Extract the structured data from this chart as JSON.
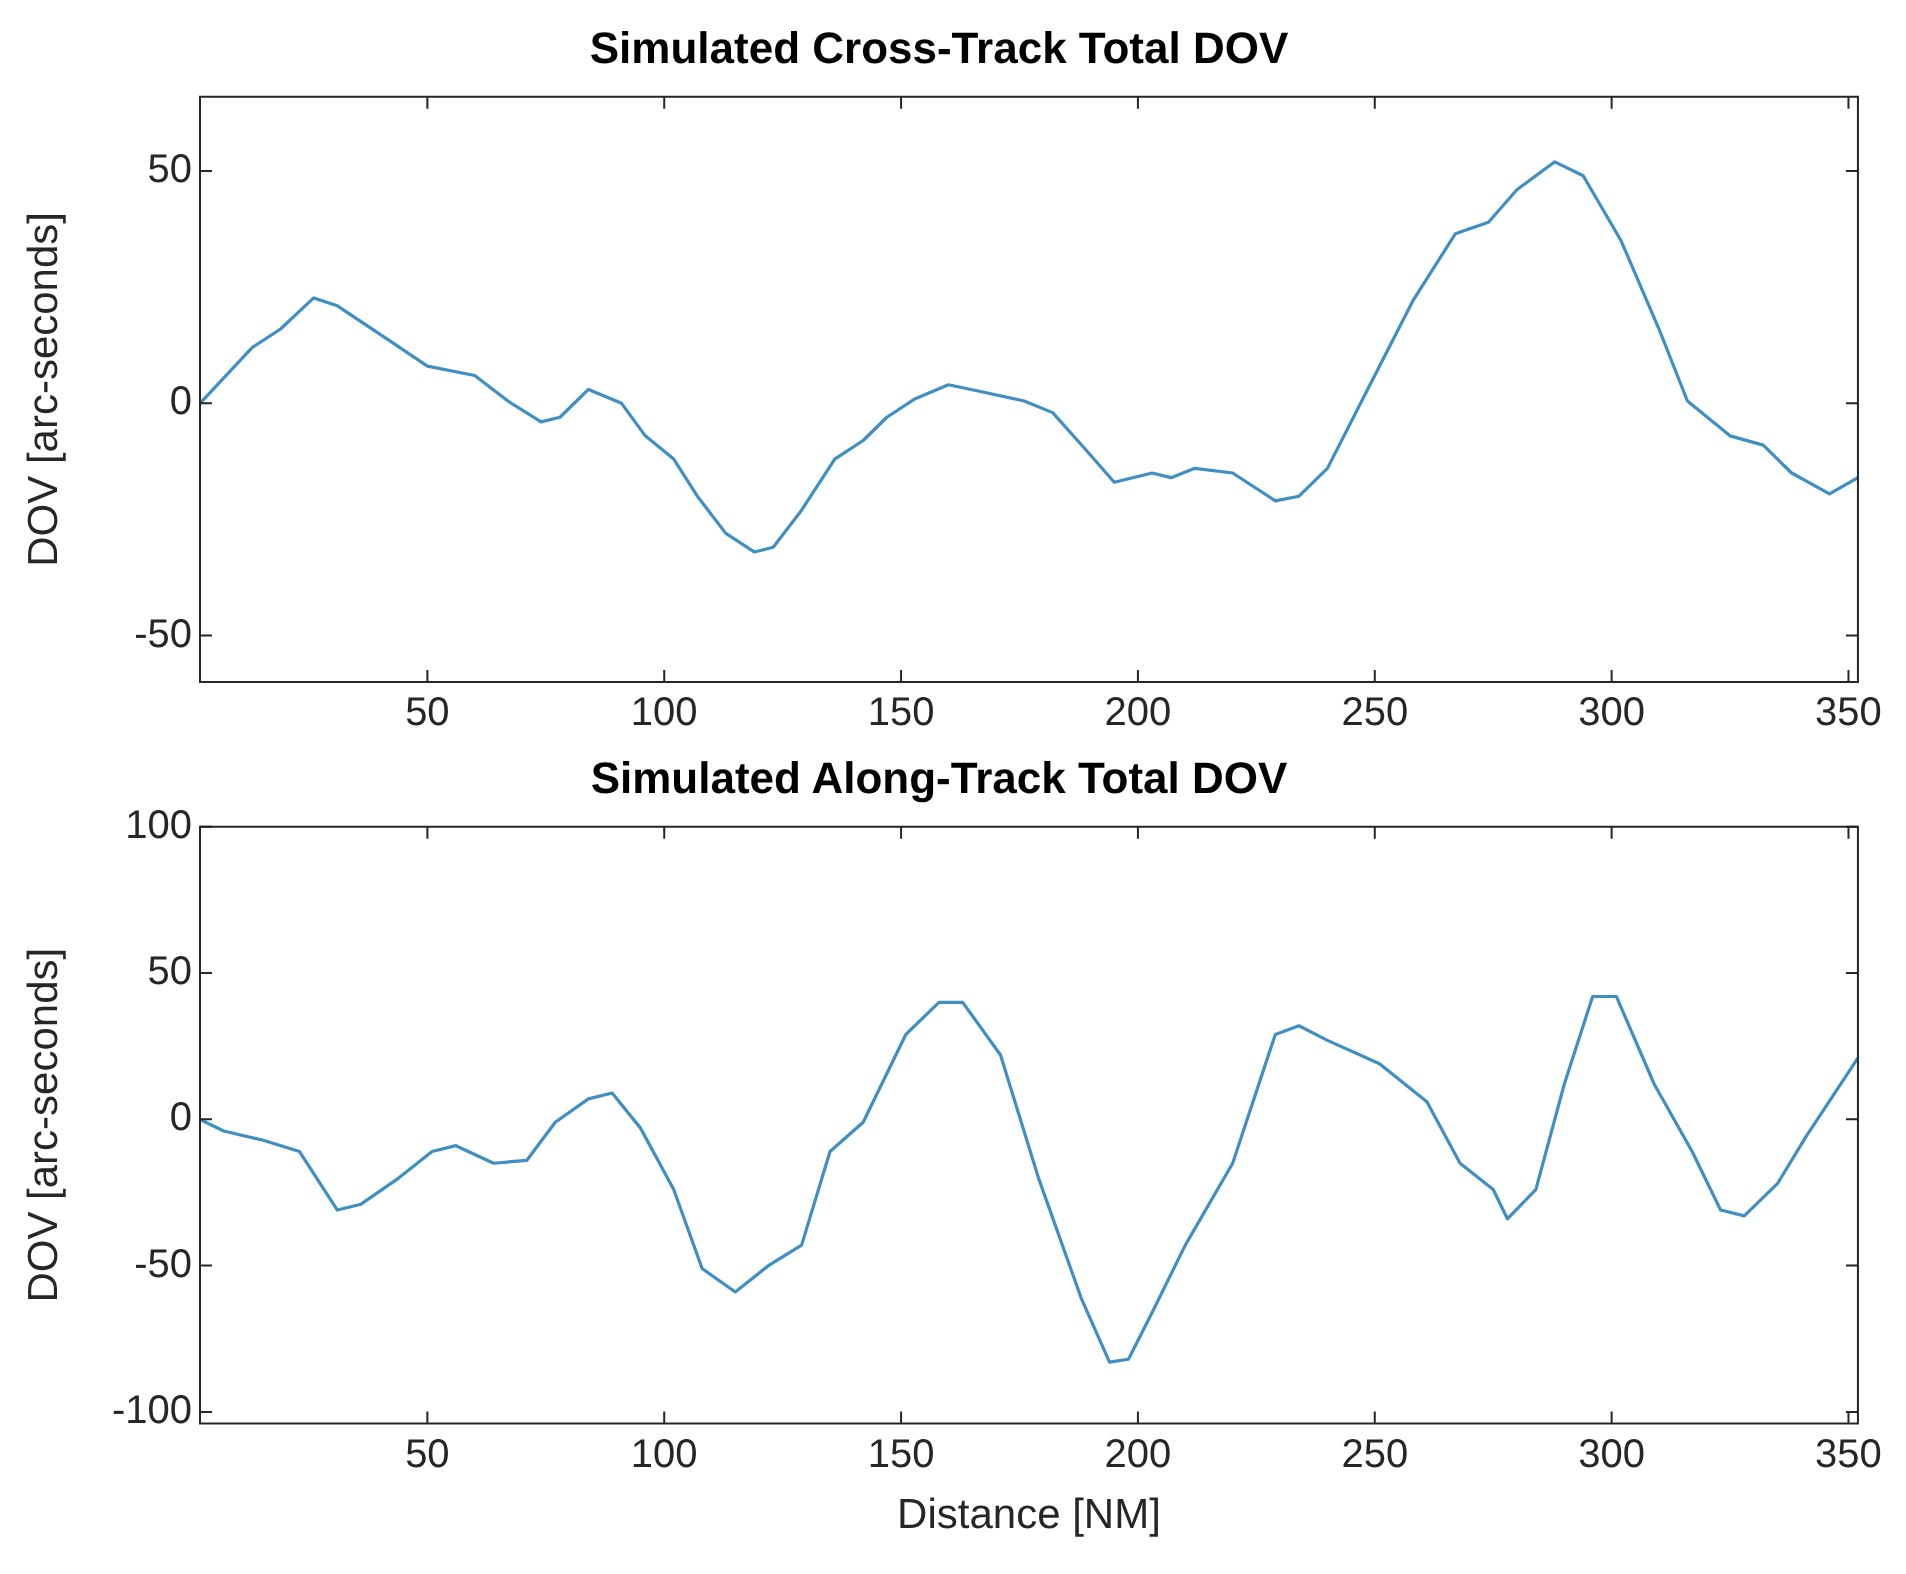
{
  "chart_data": [
    {
      "type": "line",
      "title": "Simulated Cross-Track Total DOV",
      "ylabel": "DOV [arc-seconds]",
      "xlim": [
        2,
        352
      ],
      "xticks": [
        50,
        100,
        150,
        200,
        250,
        300,
        350
      ],
      "ylim": [
        -60,
        66
      ],
      "yticks": [
        -50,
        0,
        50
      ],
      "grid": false,
      "legend": false,
      "marker": "none",
      "line_style": "solid",
      "series": [
        {
          "color": "#3f8fc4",
          "x": [
            2,
            13,
            19,
            26,
            31,
            42,
            50,
            60,
            67,
            74,
            78,
            84,
            91,
            96,
            102,
            107,
            113,
            119,
            123,
            129,
            136,
            142,
            147,
            153,
            160,
            167,
            176,
            182,
            189,
            195,
            203,
            207,
            212,
            220,
            229,
            234,
            240,
            248,
            258,
            267,
            274,
            280,
            288,
            294,
            302,
            310,
            316,
            325,
            332,
            338,
            346,
            352
          ],
          "values": [
            0,
            12,
            16,
            22.7,
            21,
            13.5,
            8,
            6,
            0.5,
            -4,
            -3,
            3,
            0,
            -7,
            -12,
            -20,
            -28,
            -32,
            -31,
            -23,
            -12,
            -8,
            -3,
            1,
            4,
            2.5,
            0.5,
            -2,
            -10,
            -17,
            -15,
            -16,
            -14,
            -15,
            -21,
            -20,
            -14,
            2,
            22,
            36.5,
            39,
            46,
            52,
            49,
            35,
            16,
            0.5,
            -7,
            -9,
            -15,
            -19.5,
            -16
          ]
        }
      ]
    },
    {
      "type": "line",
      "title": "Simulated Along-Track Total DOV",
      "xlabel": "Distance [NM]",
      "ylabel": "DOV [arc-seconds]",
      "xlim": [
        2,
        352
      ],
      "xticks": [
        50,
        100,
        150,
        200,
        250,
        300,
        350
      ],
      "ylim": [
        -104,
        100
      ],
      "yticks": [
        -100,
        -50,
        0,
        50,
        100
      ],
      "grid": false,
      "legend": false,
      "marker": "none",
      "line_style": "solid",
      "series": [
        {
          "color": "#3f8fc4",
          "x": [
            2,
            7,
            15,
            23,
            31,
            36,
            44,
            51,
            56,
            64,
            71,
            77,
            84,
            89,
            95,
            102,
            108,
            115,
            122,
            129,
            135,
            142,
            151,
            158,
            163,
            171,
            179,
            188,
            194,
            198,
            203,
            210,
            220,
            229,
            234,
            240,
            251,
            261,
            268,
            275,
            278,
            284,
            290,
            296,
            301,
            309,
            317,
            323,
            328,
            335,
            341,
            352
          ],
          "values": [
            0,
            -4,
            -7,
            -11,
            -31,
            -29,
            -20,
            -11,
            -9,
            -15,
            -14,
            -1,
            7,
            9,
            -3,
            -24,
            -51,
            -59,
            -50,
            -43,
            -11,
            -1,
            29,
            40,
            40,
            22,
            -20,
            -61,
            -83,
            -82,
            -66,
            -43,
            -15,
            29,
            32,
            27,
            19,
            6,
            -15,
            -24,
            -34,
            -24,
            12,
            42,
            42,
            12,
            -11,
            -31,
            -33,
            -22,
            -6,
            21
          ]
        }
      ]
    }
  ]
}
